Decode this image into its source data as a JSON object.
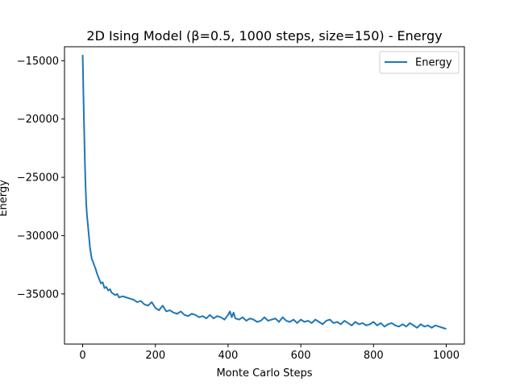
{
  "chart_data": {
    "type": "line",
    "title": "2D Ising Model (β=0.5, 1000 steps, size=150) - Energy",
    "xlabel": "Monte Carlo Steps",
    "ylabel": "Energy",
    "xlim": [
      -50,
      1050
    ],
    "ylim": [
      -39300,
      -13800
    ],
    "xticks": [
      0,
      200,
      400,
      600,
      800,
      1000
    ],
    "xtick_labels": [
      "0",
      "200",
      "400",
      "600",
      "800",
      "1000"
    ],
    "yticks": [
      -35000,
      -30000,
      -25000,
      -20000,
      -15000
    ],
    "ytick_labels": [
      "−35000",
      "−30000",
      "−25000",
      "−20000",
      "−15000"
    ],
    "grid": false,
    "legend_position": "top-right",
    "series": [
      {
        "name": "Energy",
        "color": "#1f77b4",
        "x": [
          0,
          2,
          4,
          6,
          8,
          10,
          12,
          15,
          18,
          20,
          22,
          25,
          28,
          30,
          35,
          40,
          45,
          50,
          55,
          60,
          65,
          70,
          75,
          80,
          85,
          90,
          95,
          100,
          110,
          120,
          130,
          140,
          150,
          160,
          170,
          180,
          190,
          200,
          210,
          220,
          230,
          240,
          250,
          260,
          270,
          280,
          290,
          300,
          310,
          320,
          330,
          340,
          350,
          360,
          370,
          380,
          390,
          400,
          405,
          410,
          415,
          420,
          430,
          440,
          450,
          460,
          470,
          480,
          490,
          500,
          510,
          520,
          530,
          540,
          550,
          560,
          570,
          580,
          590,
          600,
          610,
          620,
          630,
          640,
          650,
          660,
          670,
          680,
          690,
          700,
          710,
          720,
          730,
          740,
          750,
          760,
          770,
          780,
          790,
          800,
          810,
          820,
          830,
          840,
          850,
          860,
          870,
          880,
          890,
          900,
          910,
          920,
          930,
          940,
          950,
          960,
          970,
          980,
          990,
          1000
        ],
        "y": [
          -14500,
          -17800,
          -20800,
          -23600,
          -25800,
          -27400,
          -28300,
          -29300,
          -30300,
          -31000,
          -31400,
          -32000,
          -32200,
          -32400,
          -32800,
          -33300,
          -33700,
          -34100,
          -34000,
          -34500,
          -34400,
          -34700,
          -34600,
          -34900,
          -35000,
          -35100,
          -35000,
          -35300,
          -35200,
          -35300,
          -35400,
          -35500,
          -35700,
          -35600,
          -35900,
          -36000,
          -35700,
          -36200,
          -36400,
          -36000,
          -36500,
          -36400,
          -36600,
          -36700,
          -36500,
          -36800,
          -36900,
          -36700,
          -36800,
          -37000,
          -36900,
          -37100,
          -36800,
          -37100,
          -36900,
          -37000,
          -37200,
          -36800,
          -36500,
          -37000,
          -36600,
          -37100,
          -37200,
          -37000,
          -37300,
          -37100,
          -37200,
          -37400,
          -37300,
          -37000,
          -37300,
          -37200,
          -37100,
          -37400,
          -37000,
          -37300,
          -37400,
          -37200,
          -37500,
          -37200,
          -37400,
          -37300,
          -37500,
          -37200,
          -37400,
          -37600,
          -37300,
          -37200,
          -37500,
          -37400,
          -37600,
          -37300,
          -37500,
          -37700,
          -37400,
          -37600,
          -37500,
          -37700,
          -37600,
          -37400,
          -37700,
          -37500,
          -37800,
          -37600,
          -37500,
          -37700,
          -37800,
          -37600,
          -37800,
          -37500,
          -37700,
          -37900,
          -37600,
          -37800,
          -37700,
          -37900,
          -37700,
          -37800,
          -37900,
          -38000
        ]
      }
    ]
  }
}
